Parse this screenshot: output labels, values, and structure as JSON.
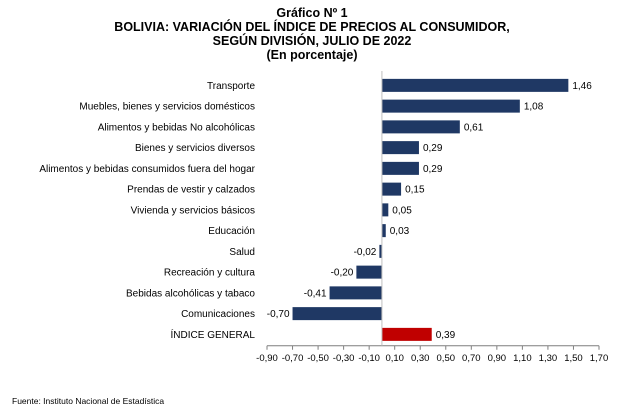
{
  "chart_data": {
    "type": "bar",
    "orientation": "horizontal",
    "title": "Gráfico Nº 1",
    "subtitle_lines": [
      "BOLIVIA: VARIACIÓN DEL ÍNDICE DE PRECIOS AL CONSUMIDOR,",
      "SEGÚN DIVISIÓN, JULIO DE 2022",
      "(En porcentaje)"
    ],
    "categories": [
      "Transporte",
      "Muebles, bienes y servicios domésticos",
      "Alimentos y bebidas No alcohólicas",
      "Bienes y servicios diversos",
      "Alimentos y bebidas consumidos fuera del hogar",
      "Prendas de vestir y calzados",
      "Vivienda y servicios básicos",
      "Educación",
      "Salud",
      "Recreación y cultura",
      "Bebidas alcohólicas y tabaco",
      "Comunicaciones",
      "ÍNDICE GENERAL"
    ],
    "values": [
      1.46,
      1.08,
      0.61,
      0.29,
      0.29,
      0.15,
      0.05,
      0.03,
      -0.02,
      -0.2,
      -0.41,
      -0.7,
      0.39
    ],
    "value_labels": [
      "1,46",
      "1,08",
      "0,61",
      "0,29",
      "0,29",
      "0,15",
      "0,05",
      "0,03",
      "-0,02",
      "-0,20",
      "-0,41",
      "-0,70",
      "0,39"
    ],
    "highlight_index": 12,
    "xlim": [
      -0.9,
      1.7
    ],
    "xticks": [
      -0.9,
      -0.7,
      -0.5,
      -0.3,
      -0.1,
      0.1,
      0.3,
      0.5,
      0.7,
      0.9,
      1.1,
      1.3,
      1.5,
      1.7
    ],
    "xtick_labels": [
      "-0,90",
      "-0,70",
      "-0,50",
      "-0,30",
      "-0,10",
      "0,10",
      "0,30",
      "0,50",
      "0,70",
      "0,90",
      "1,10",
      "1,30",
      "1,50",
      "1,70"
    ],
    "grid": false,
    "colors": {
      "bar": "#1f3864",
      "highlight": "#c00000"
    }
  },
  "source": "Fuente: Instituto Nacional de Estadística"
}
